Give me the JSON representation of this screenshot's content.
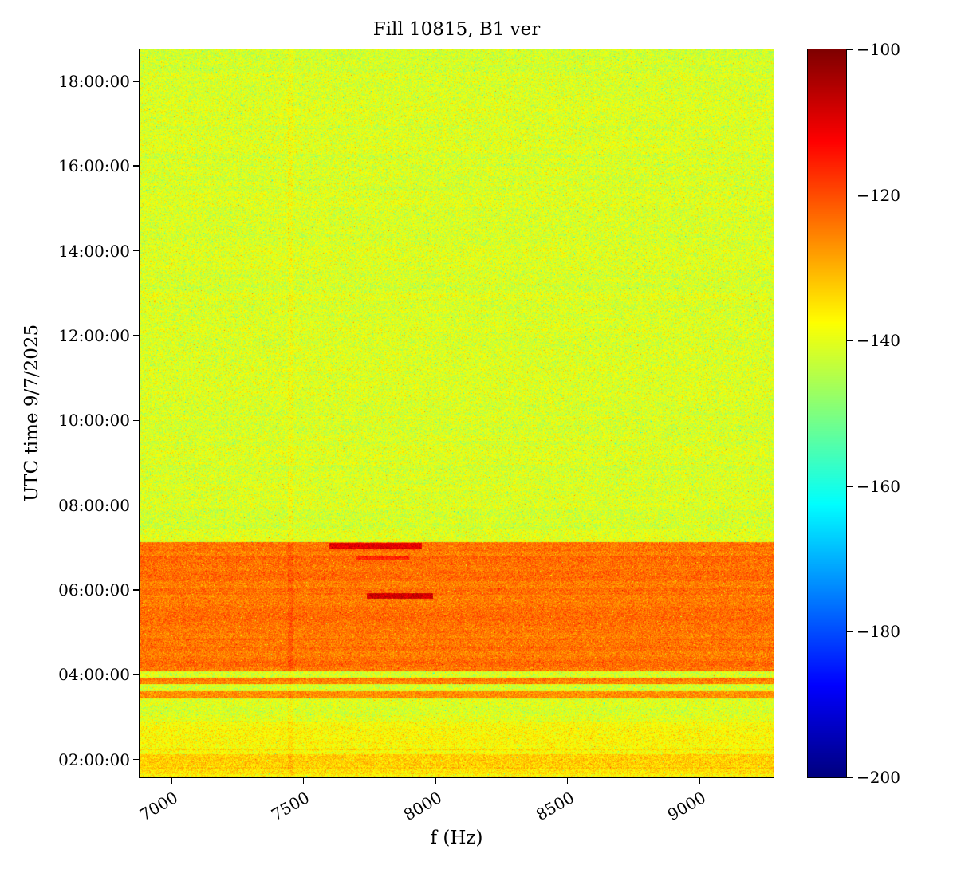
{
  "chart_data": {
    "type": "heatmap",
    "title": "Fill 10815, B1 ver",
    "xlabel": "f (Hz)",
    "ylabel": "UTC time 9/7/2025",
    "colormap": "jet",
    "value_range_db": [
      -200,
      -100
    ],
    "x_range_hz": [
      6880,
      9280
    ],
    "x_ticks": [
      7000,
      7500,
      8000,
      8500,
      9000
    ],
    "x_tick_labels": [
      "7000",
      "7500",
      "8000",
      "8500",
      "9000"
    ],
    "y_range_hours": [
      1.58,
      18.75
    ],
    "y_tick_hours": [
      2,
      4,
      6,
      8,
      10,
      12,
      14,
      16,
      18
    ],
    "y_tick_labels": [
      "02:00:00",
      "04:00:00",
      "06:00:00",
      "08:00:00",
      "10:00:00",
      "12:00:00",
      "14:00:00",
      "16:00:00",
      "18:00:00"
    ],
    "colorbar_tick_values": [
      -100,
      -120,
      -140,
      -160,
      -180,
      -200
    ],
    "colorbar_tick_labels": [
      "−100",
      "−120",
      "−140",
      "−160",
      "−180",
      "−200"
    ],
    "background_level_db": -141.5,
    "noise_sigma_db": 3.5,
    "bands": [
      {
        "desc": "strong orange band",
        "t_start": 4.08,
        "t_end": 7.13,
        "level_db": -124.5,
        "sigma": 3.0,
        "row_mod_db": 1.6
      },
      {
        "desc": "narrow orange stripe upper",
        "t_start": 3.78,
        "t_end": 3.93,
        "level_db": -126,
        "sigma": 3.0,
        "row_mod_db": 1.4
      },
      {
        "desc": "narrow orange stripe lower",
        "t_start": 3.45,
        "t_end": 3.62,
        "level_db": -127,
        "sigma": 3.0,
        "row_mod_db": 1.4
      },
      {
        "desc": "streaky early region",
        "t_start": 1.58,
        "t_end": 2.9,
        "level_db": -137.5,
        "sigma": 3.2,
        "row_mod_db": 5.0
      }
    ],
    "hotspots": [
      {
        "desc": "red blob",
        "t_start": 5.8,
        "t_end": 5.92,
        "f_start": 7740,
        "f_end": 7990,
        "level_db": -108
      },
      {
        "desc": "dark red streaks near band top",
        "t_start": 6.96,
        "t_end": 7.1,
        "f_start": 7600,
        "f_end": 7950,
        "level_db": -110
      },
      {
        "desc": "faint red streak",
        "t_start": 6.72,
        "t_end": 6.8,
        "f_start": 7700,
        "f_end": 7900,
        "level_db": -116
      }
    ],
    "vertical_line": {
      "f": 7452,
      "boost_db": 2.5
    }
  }
}
